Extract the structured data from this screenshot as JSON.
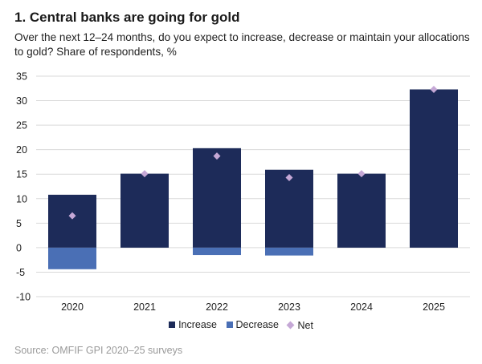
{
  "header": {
    "title": "1. Central banks are going for gold",
    "subtitle": "Over the next 12–24 months, do you expect to increase, decrease or maintain your allocations to gold? Share of respondents, %"
  },
  "source": "Source: OMFIF GPI 2020–25 surveys",
  "colors": {
    "increase": "#1d2b59",
    "decrease": "#4a6fb5",
    "net": "#c5a8d6",
    "grid": "#d9d9d9"
  },
  "chart_data": {
    "type": "bar",
    "stacked": true,
    "categories": [
      "2020",
      "2021",
      "2022",
      "2023",
      "2024",
      "2025"
    ],
    "series": [
      {
        "name": "Increase",
        "type": "bar",
        "values": [
          10.8,
          15.1,
          20.3,
          15.9,
          15.1,
          32.3
        ]
      },
      {
        "name": "Decrease",
        "type": "bar",
        "values": [
          -4.4,
          0,
          -1.5,
          -1.6,
          0,
          0
        ]
      },
      {
        "name": "Net",
        "type": "scatter",
        "marker": "diamond",
        "values": [
          6.5,
          15.1,
          18.7,
          14.3,
          15.1,
          32.3
        ]
      }
    ],
    "ylim": [
      -10,
      35
    ],
    "yticks": [
      35,
      30,
      25,
      20,
      15,
      10,
      5,
      0,
      -5,
      -10
    ],
    "ytick_labels": [
      "35",
      "30",
      "25",
      "20",
      "15",
      "10",
      "5",
      "0",
      "-5",
      "-10"
    ],
    "grid": true,
    "legend": [
      "Increase",
      "Decrease",
      "Net"
    ],
    "legend_position": "bottom-center"
  }
}
